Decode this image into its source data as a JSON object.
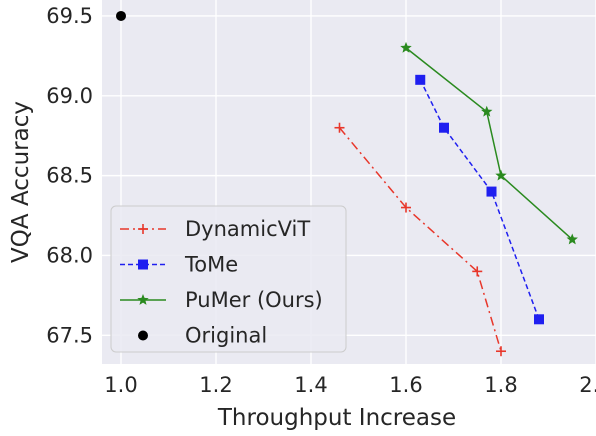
{
  "chart_data": {
    "type": "line",
    "title": "",
    "xlabel": "Throughput Increase",
    "ylabel": "VQA Accuracy",
    "xlim": [
      0.96,
      2.0
    ],
    "ylim": [
      67.32,
      69.6
    ],
    "xticks": [
      "1.0",
      "1.2",
      "1.4",
      "1.6",
      "1.8",
      "2.0"
    ],
    "yticks": [
      "67.5",
      "68.0",
      "68.5",
      "69.0",
      "69.5"
    ],
    "grid": true,
    "legend_position": "lower-left",
    "series": [
      {
        "name": "DynamicViT",
        "color": "#e8372b",
        "marker": "plus",
        "linestyle": "dashdot",
        "points": [
          [
            1.46,
            68.8
          ],
          [
            1.6,
            68.3
          ],
          [
            1.75,
            67.9
          ],
          [
            1.8,
            67.4
          ]
        ]
      },
      {
        "name": "ToMe",
        "color": "#1f1ff0",
        "marker": "square",
        "linestyle": "dashed",
        "points": [
          [
            1.63,
            69.1
          ],
          [
            1.68,
            68.8
          ],
          [
            1.78,
            68.4
          ],
          [
            1.88,
            67.6
          ]
        ]
      },
      {
        "name": "PuMer (Ours)",
        "color": "#2a8a1f",
        "marker": "star",
        "linestyle": "solid",
        "points": [
          [
            1.6,
            69.3
          ],
          [
            1.77,
            68.9
          ],
          [
            1.8,
            68.5
          ],
          [
            1.95,
            68.1
          ]
        ]
      },
      {
        "name": "Original",
        "color": "#000000",
        "marker": "circle",
        "linestyle": "none",
        "points": [
          [
            1.0,
            69.5
          ]
        ]
      }
    ]
  }
}
